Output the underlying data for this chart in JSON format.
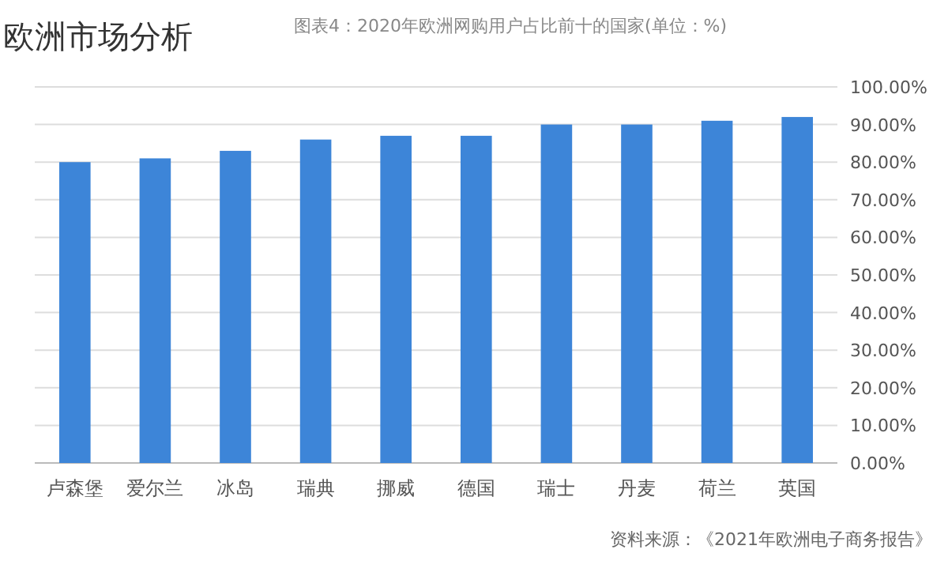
{
  "chart_data": {
    "type": "bar",
    "title": "欧洲市场分析",
    "subtitle": "图表4：2020年欧洲网购用户占比前十的国家(单位：%)",
    "categories": [
      "卢森堡",
      "爱尔兰",
      "冰岛",
      "瑞典",
      "挪威",
      "德国",
      "瑞士",
      "丹麦",
      "荷兰",
      "英国"
    ],
    "values": [
      80,
      81,
      83,
      86,
      87,
      87,
      90,
      90,
      91,
      92
    ],
    "color": "#3d85d8",
    "ylim": [
      0,
      100
    ],
    "yticks": [
      {
        "value": 0,
        "label": "0.00%"
      },
      {
        "value": 10,
        "label": "10.00%"
      },
      {
        "value": 20,
        "label": "20.00%"
      },
      {
        "value": 30,
        "label": "30.00%"
      },
      {
        "value": 40,
        "label": "40.00%"
      },
      {
        "value": 50,
        "label": "50.00%"
      },
      {
        "value": 60,
        "label": "60.00%"
      },
      {
        "value": 70,
        "label": "70.00%"
      },
      {
        "value": 80,
        "label": "80.00%"
      },
      {
        "value": 90,
        "label": "90.00%"
      },
      {
        "value": 100,
        "label": "100.00%"
      }
    ],
    "grid": "y",
    "annotations": [
      "资料来源：《2021年欧洲电子商务报告》"
    ]
  }
}
